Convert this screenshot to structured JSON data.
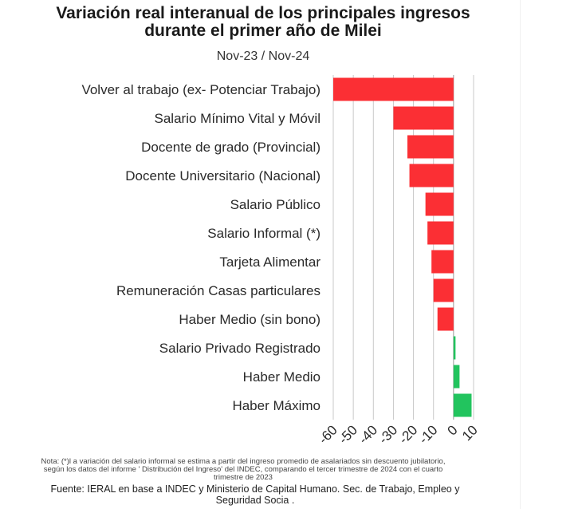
{
  "header": {
    "title_line1": "Variación real interanual de los principales ingresos",
    "title_line2": "durante el primer año de Milei",
    "subtitle": "Nov-23 / Nov-24"
  },
  "colors": {
    "negative": "#fb2f34",
    "positive": "#22c45e",
    "grid": "#c9c9c9"
  },
  "chart_data": {
    "type": "bar",
    "orientation": "horizontal",
    "title": "Variación real interanual de los principales ingresos durante el primer año de Milei",
    "subtitle": "Nov-23 / Nov-24",
    "categories": [
      "Volver al trabajo (ex- Potenciar Trabajo)",
      "Salario Mínimo Vital y Móvil",
      "Docente de grado (Provincial)",
      "Docente Universitario (Nacional)",
      "Salario Público",
      "Salario Informal (*)",
      "Tarjeta Alimentar",
      "Remuneración Casas particulares",
      "Haber Medio (sin bono)",
      "Salario Privado Registrado",
      "Haber Medio",
      "Haber Máximo"
    ],
    "values": [
      -60,
      -30,
      -23,
      -22,
      -14,
      -13,
      -11,
      -10,
      -8,
      1,
      3,
      9
    ],
    "xlim": [
      -60,
      10
    ],
    "xticks": [
      -60,
      -50,
      -40,
      -30,
      -20,
      -10,
      0,
      10
    ],
    "grid": true,
    "legend": "none"
  },
  "footer": {
    "note_line1": "Nota: (*)l a variación del salario informal se estima a partir del ingreso promedio de asalariados sin descuento jubilatorio,",
    "note_line2": "según los datos del informe ' Distribución del Ingreso' del  INDEC, comparando el tercer trimestre de 2024 con el cuarto",
    "note_line3": "trimestre de 2023",
    "source_line1": "Fuente: IERAL en base a INDEC y Ministerio de Capital Humano. Sec. de Trabajo, Empleo y",
    "source_line2": "Seguridad Socia ."
  }
}
